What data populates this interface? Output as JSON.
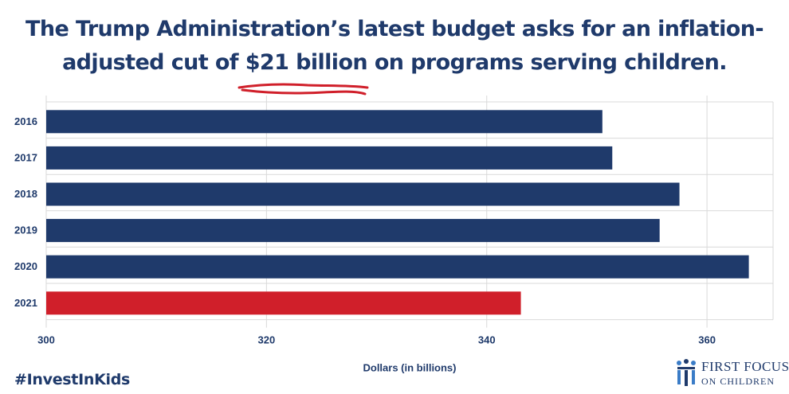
{
  "headline": {
    "line1": "The Trump Administration’s latest budget asks for an inflation-",
    "line2_pre": "adjusted cut of ",
    "line2_emph": "$21 billion",
    "line2_post": " on programs serving children."
  },
  "footer": {
    "hashtag": "#InvestInKids",
    "logo_line1": "FIRST FOCUS",
    "logo_line2": "ON CHILDREN"
  },
  "colors": {
    "bar_default": "#1f3a6b",
    "bar_highlight": "#d01f2a",
    "headline": "#1f3a6b",
    "underline": "#d01f2a",
    "grid": "#d9d9d9"
  },
  "chart_data": {
    "type": "bar",
    "orientation": "horizontal",
    "categories": [
      "2016",
      "2017",
      "2018",
      "2019",
      "2020",
      "2021"
    ],
    "values": [
      350.5,
      351.4,
      357.5,
      355.7,
      363.8,
      343.1
    ],
    "highlight_category": "2021",
    "xlabel": "Dollars (in billions)",
    "ylabel": "",
    "xlim": [
      300,
      366
    ],
    "xticks": [
      300,
      320,
      340,
      360
    ],
    "grid": true
  }
}
